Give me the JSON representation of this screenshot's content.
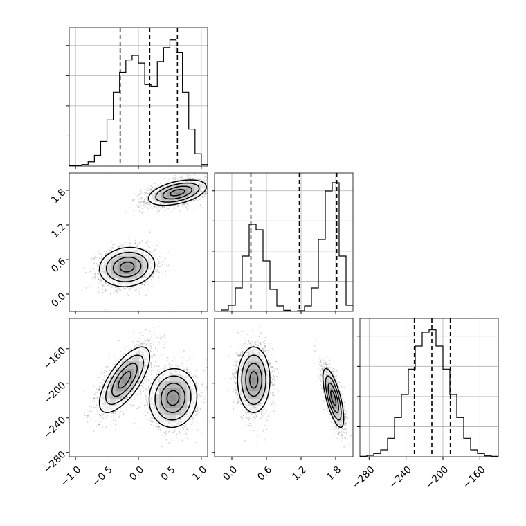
{
  "figure": {
    "type": "corner-plot",
    "background": "#ffffff",
    "line_color": "#000000",
    "grid_color": "#b0b0b0"
  },
  "chart_data": [
    {
      "id": "hist-x",
      "type": "bar",
      "style": "step-histogram",
      "xlim": [
        -1.1,
        1.1
      ],
      "x_ticks": [
        -1.0,
        -0.5,
        0.0,
        0.5,
        1.0
      ],
      "bin_edges": [
        -1.1,
        -1.0,
        -0.9,
        -0.8,
        -0.7,
        -0.6,
        -0.5,
        -0.4,
        -0.3,
        -0.2,
        -0.1,
        0.0,
        0.1,
        0.2,
        0.3,
        0.4,
        0.5,
        0.6,
        0.7,
        0.8,
        0.9,
        1.0,
        1.1
      ],
      "values": [
        1,
        2,
        5,
        14,
        35,
        80,
        150,
        240,
        305,
        345,
        360,
        335,
        265,
        260,
        340,
        385,
        410,
        370,
        240,
        120,
        40,
        5
      ],
      "ylim": [
        0,
        450
      ],
      "quantiles": [
        -0.29,
        0.18,
        0.62
      ]
    },
    {
      "id": "hist-y",
      "type": "bar",
      "style": "step-histogram",
      "xlim": [
        -0.3,
        2.1
      ],
      "x_ticks": [
        0.0,
        0.6,
        1.2,
        1.8
      ],
      "x_tick_labels": [
        "0.0",
        "0.6",
        "1.2",
        "1.8"
      ],
      "bin_edges": [
        -0.3,
        -0.18,
        -0.06,
        0.06,
        0.18,
        0.3,
        0.42,
        0.54,
        0.66,
        0.78,
        0.9,
        1.02,
        1.14,
        1.26,
        1.38,
        1.5,
        1.62,
        1.74,
        1.86,
        1.98,
        2.1
      ],
      "values": [
        2,
        10,
        45,
        170,
        400,
        630,
        590,
        365,
        160,
        40,
        8,
        2,
        5,
        40,
        170,
        520,
        870,
        930,
        400,
        45
      ],
      "ylim": [
        0,
        1000
      ],
      "quantiles": [
        0.33,
        1.17,
        1.82
      ]
    },
    {
      "id": "hist-z",
      "type": "bar",
      "style": "step-histogram",
      "xlim": [
        -290,
        -140
      ],
      "x_ticks": [
        -280,
        -240,
        -200,
        -160
      ],
      "x_tick_labels": [
        "−280",
        "−240",
        "−200",
        "−160"
      ],
      "bin_edges": [
        -290,
        -282.5,
        -275,
        -267.5,
        -260,
        -252.5,
        -245,
        -237.5,
        -230,
        -222.5,
        -215,
        -207.5,
        -200,
        -192.5,
        -185,
        -177.5,
        -170,
        -162.5,
        -155,
        -147.5,
        -140
      ],
      "values": [
        1,
        3,
        7,
        15,
        40,
        85,
        135,
        190,
        240,
        270,
        275,
        240,
        190,
        135,
        85,
        40,
        15,
        7,
        2,
        1
      ],
      "ylim": [
        0,
        300
      ],
      "quantiles": [
        -231,
        -212,
        -192
      ]
    },
    {
      "id": "scatter-x-y",
      "type": "scatter",
      "style": "density-contour",
      "xlim": [
        -1.1,
        1.1
      ],
      "ylim": [
        -0.3,
        2.1
      ],
      "y_ticks": [
        0.0,
        0.6,
        1.2,
        1.8
      ],
      "y_tick_labels": [
        "0.0",
        "0.6",
        "1.2",
        "1.8"
      ],
      "modes": [
        {
          "x": -0.18,
          "y": 0.47,
          "sx": 0.22,
          "sy": 0.17,
          "rho": 0.1,
          "n": 2200
        },
        {
          "x": 0.62,
          "y": 1.76,
          "sx": 0.23,
          "sy": 0.11,
          "rho": 0.45,
          "n": 2200
        }
      ]
    },
    {
      "id": "scatter-x-z",
      "type": "scatter",
      "style": "density-contour",
      "xlim": [
        -1.1,
        1.1
      ],
      "ylim": [
        -285,
        -125
      ],
      "x_tick_labels": [
        "−1.0",
        "−0.5",
        "0.0",
        "0.5",
        "1.0"
      ],
      "y_ticks": [
        -280,
        -240,
        -200,
        -160
      ],
      "y_tick_labels": [
        "−280",
        "−240",
        "−200",
        "−160"
      ],
      "modes": [
        {
          "x": -0.22,
          "y": -196,
          "sx": 0.2,
          "sy": 19,
          "rho": 0.7,
          "n": 2200
        },
        {
          "x": 0.55,
          "y": -217,
          "sx": 0.19,
          "sy": 17,
          "rho": 0.05,
          "n": 2200
        }
      ]
    },
    {
      "id": "scatter-y-z",
      "type": "scatter",
      "style": "density-contour",
      "xlim": [
        -0.3,
        2.1
      ],
      "ylim": [
        -285,
        -125
      ],
      "modes": [
        {
          "x": 0.38,
          "y": -196,
          "sx": 0.14,
          "sy": 19,
          "rho": 0.0,
          "n": 2200
        },
        {
          "x": 1.76,
          "y": -217,
          "sx": 0.09,
          "sy": 17,
          "rho": -0.7,
          "n": 2200
        }
      ]
    }
  ]
}
